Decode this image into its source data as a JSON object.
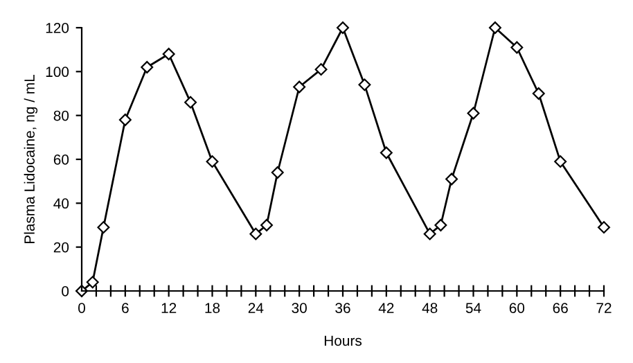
{
  "chart_data": {
    "type": "line",
    "xlabel": "Hours",
    "ylabel": "Plasma Lidocaine, ng / mL",
    "x": [
      0,
      1.5,
      3,
      6,
      9,
      12,
      15,
      18,
      24,
      25.5,
      27,
      30,
      33,
      36,
      39,
      42,
      48,
      49.5,
      51,
      54,
      57,
      60,
      63,
      66,
      72
    ],
    "series": [
      {
        "color": "#000000",
        "values": [
          0,
          4,
          29,
          78,
          102,
          108,
          86,
          59,
          26,
          30,
          54,
          93,
          101,
          120,
          94,
          63,
          26,
          30,
          51,
          81,
          120,
          111,
          90,
          59,
          29
        ]
      }
    ],
    "xlim": [
      0,
      72
    ],
    "ylim": [
      0,
      120
    ],
    "xticks": [
      0,
      {
        "value": 2,
        "label": null
      },
      {
        "value": 4,
        "label": null
      },
      6,
      {
        "value": 8,
        "label": null
      },
      {
        "value": 10,
        "label": null
      },
      12,
      {
        "value": 14,
        "label": null
      },
      {
        "value": 16,
        "label": null
      },
      18,
      {
        "value": 20,
        "label": null
      },
      {
        "value": 22,
        "label": null
      },
      24,
      {
        "value": 26,
        "label": null
      },
      {
        "value": 28,
        "label": null
      },
      30,
      {
        "value": 32,
        "label": null
      },
      {
        "value": 34,
        "label": null
      },
      36,
      {
        "value": 38,
        "label": null
      },
      {
        "value": 40,
        "label": null
      },
      42,
      {
        "value": 44,
        "label": null
      },
      {
        "value": 46,
        "label": null
      },
      48,
      {
        "value": 50,
        "label": null
      },
      {
        "value": 52,
        "label": null
      },
      54,
      {
        "value": 56,
        "label": null
      },
      {
        "value": 58,
        "label": null
      },
      60,
      {
        "value": 62,
        "label": null
      },
      {
        "value": 64,
        "label": null
      },
      66,
      {
        "value": 68,
        "label": null
      },
      {
        "value": 70,
        "label": null
      },
      72
    ],
    "yticks": [
      0,
      20,
      40,
      60,
      80,
      100,
      120
    ],
    "marker": "diamond",
    "line_style": "solid",
    "grid": false,
    "legend": false
  }
}
